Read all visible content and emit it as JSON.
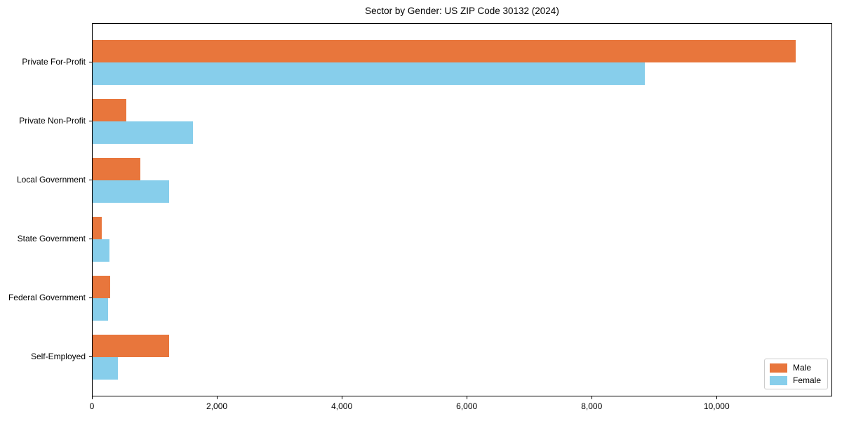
{
  "chart_data": {
    "type": "bar",
    "orientation": "horizontal",
    "title": "Sector by Gender: US ZIP Code 30132 (2024)",
    "categories": [
      "Private For-Profit",
      "Private Non-Profit",
      "Local Government",
      "State Government",
      "Federal Government",
      "Self-Employed"
    ],
    "series": [
      {
        "name": "Male",
        "color": "#E8763C",
        "values": [
          11280,
          540,
          770,
          150,
          280,
          1230
        ]
      },
      {
        "name": "Female",
        "color": "#87CEEB",
        "values": [
          8860,
          1610,
          1230,
          270,
          250,
          400
        ]
      }
    ],
    "xlabel": "",
    "ylabel": "",
    "xlim": [
      0,
      11850
    ],
    "x_ticks": [
      0,
      2000,
      4000,
      6000,
      8000,
      10000
    ],
    "x_tick_labels": [
      "0",
      "2,000",
      "4,000",
      "6,000",
      "8,000",
      "10,000"
    ],
    "legend_position": "lower right",
    "grid": false,
    "axis_color": "#000000",
    "background_color": "#ffffff"
  }
}
